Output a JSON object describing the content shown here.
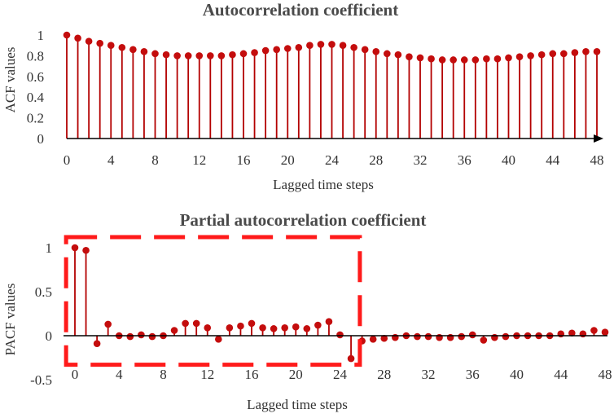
{
  "colors": {
    "stem": "#b30000",
    "marker": "#c40d0d",
    "axis": "#000000",
    "highlight": "#ff1a1a"
  },
  "chart_data": [
    {
      "type": "stem",
      "title": "Autocorrelation coefficient",
      "xlabel": "Lagged time steps",
      "ylabel": "ACF values",
      "xlim": [
        0,
        48
      ],
      "ylim": [
        0,
        1
      ],
      "xticks": [
        "0",
        "4",
        "8",
        "12",
        "16",
        "20",
        "24",
        "28",
        "32",
        "36",
        "40",
        "44",
        "48"
      ],
      "yticks": [
        "0",
        "0.2",
        "0.4",
        "0.6",
        "0.8",
        "1"
      ],
      "x": [
        0,
        1,
        2,
        3,
        4,
        5,
        6,
        7,
        8,
        9,
        10,
        11,
        12,
        13,
        14,
        15,
        16,
        17,
        18,
        19,
        20,
        21,
        22,
        23,
        24,
        25,
        26,
        27,
        28,
        29,
        30,
        31,
        32,
        33,
        34,
        35,
        36,
        37,
        38,
        39,
        40,
        41,
        42,
        43,
        44,
        45,
        46,
        47,
        48
      ],
      "values": [
        1.0,
        0.97,
        0.94,
        0.92,
        0.9,
        0.88,
        0.86,
        0.84,
        0.82,
        0.81,
        0.8,
        0.8,
        0.8,
        0.8,
        0.8,
        0.81,
        0.82,
        0.83,
        0.85,
        0.86,
        0.87,
        0.88,
        0.9,
        0.91,
        0.91,
        0.9,
        0.88,
        0.86,
        0.84,
        0.82,
        0.81,
        0.79,
        0.78,
        0.77,
        0.76,
        0.76,
        0.76,
        0.76,
        0.77,
        0.77,
        0.78,
        0.79,
        0.8,
        0.81,
        0.82,
        0.82,
        0.83,
        0.84,
        0.84
      ],
      "grid": false,
      "legend": "none"
    },
    {
      "type": "stem",
      "title": "Partial autocorrelation coefficient",
      "xlabel": "Lagged time steps",
      "ylabel": "PACF values",
      "xlim": [
        0,
        48
      ],
      "ylim": [
        -0.5,
        1
      ],
      "xticks": [
        "0",
        "4",
        "8",
        "12",
        "16",
        "20",
        "24",
        "28",
        "32",
        "36",
        "40",
        "44",
        "48"
      ],
      "yticks": [
        "-0.5",
        "0",
        "0.5",
        "1"
      ],
      "x": [
        0,
        1,
        2,
        3,
        4,
        5,
        6,
        7,
        8,
        9,
        10,
        11,
        12,
        13,
        14,
        15,
        16,
        17,
        18,
        19,
        20,
        21,
        22,
        23,
        24,
        25,
        26,
        27,
        28,
        29,
        30,
        31,
        32,
        33,
        34,
        35,
        36,
        37,
        38,
        39,
        40,
        41,
        42,
        43,
        44,
        45,
        46,
        47,
        48
      ],
      "values": [
        1.0,
        0.97,
        -0.09,
        0.13,
        0.0,
        -0.01,
        0.01,
        -0.01,
        0.0,
        0.06,
        0.14,
        0.14,
        0.09,
        -0.04,
        0.09,
        0.11,
        0.14,
        0.09,
        0.08,
        0.09,
        0.1,
        0.08,
        0.12,
        0.16,
        0.01,
        -0.26,
        -0.06,
        -0.04,
        -0.03,
        -0.02,
        0.0,
        -0.01,
        -0.01,
        -0.02,
        -0.02,
        -0.01,
        0.01,
        -0.05,
        -0.02,
        -0.01,
        0.0,
        0.0,
        0.0,
        0.0,
        0.02,
        0.03,
        0.02,
        0.06,
        0.04
      ],
      "highlight_box": {
        "x_range": [
          -0.8,
          25.8
        ],
        "y_range": [
          -0.33,
          1.12
        ]
      },
      "grid": false,
      "legend": "none"
    }
  ]
}
